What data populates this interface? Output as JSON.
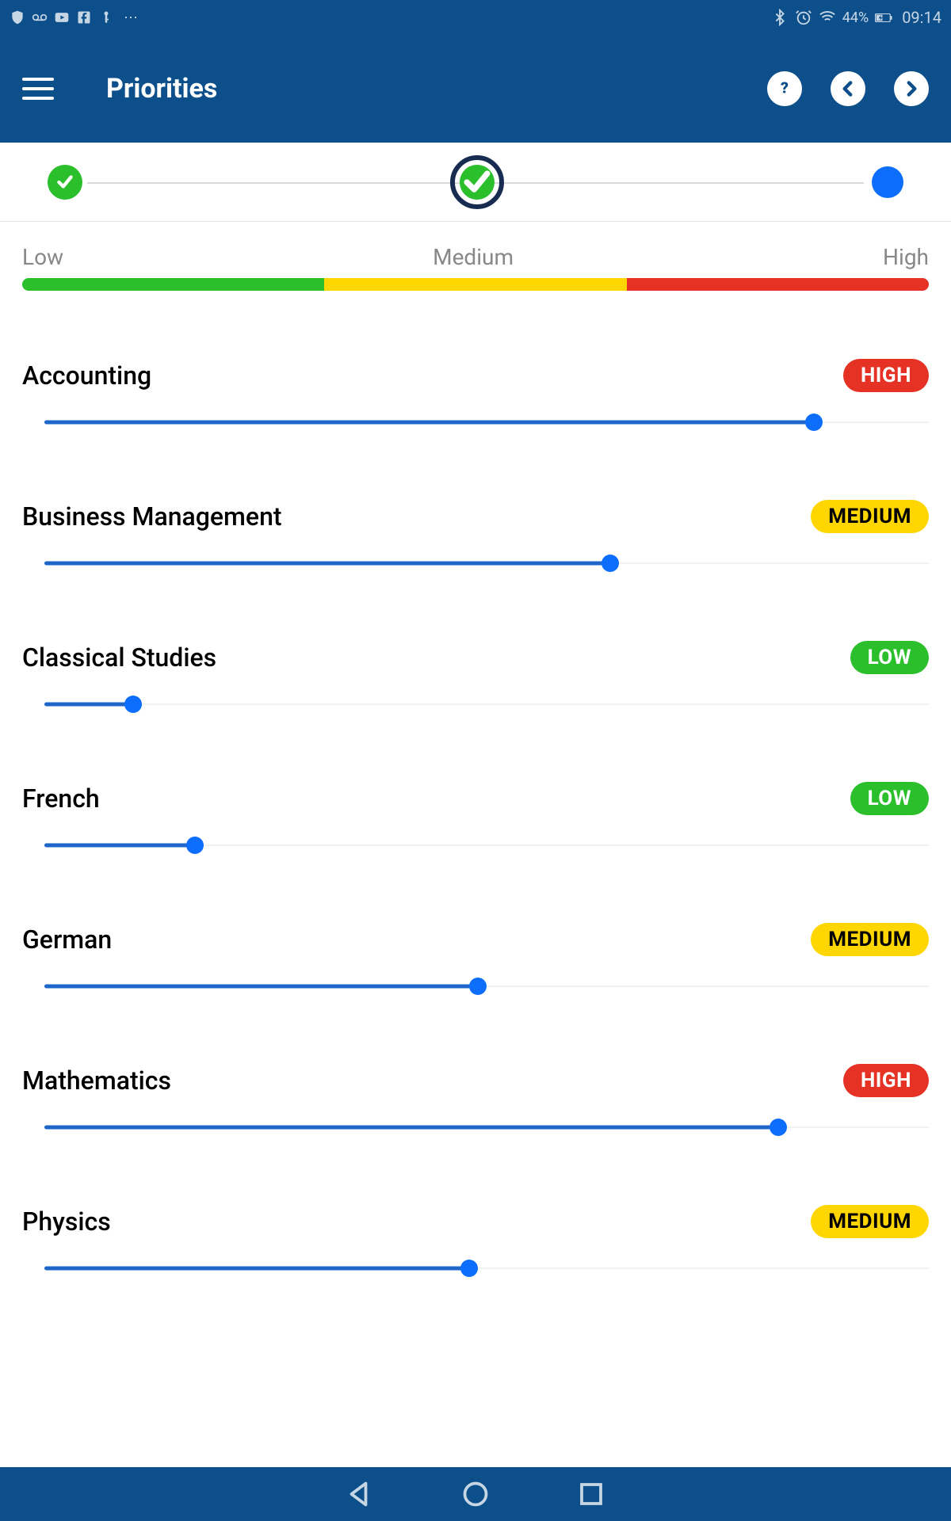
{
  "status": {
    "battery_percent": "44%",
    "time": "09:14"
  },
  "header": {
    "title": "Priorities"
  },
  "legend": {
    "low": "Low",
    "medium": "Medium",
    "high": "High",
    "colors": {
      "low": "#2bbf2b",
      "medium": "#ffd600",
      "high": "#e53224"
    }
  },
  "badge_labels": {
    "HIGH": "HIGH",
    "MEDIUM": "MEDIUM",
    "LOW": "LOW"
  },
  "slider": {
    "track_color": "#f2f2f2",
    "fill_color": "#1e66c7",
    "thumb_color": "#0d6efd"
  },
  "theme": {
    "primary": "#0d4f8b",
    "white": "#ffffff"
  },
  "subjects": [
    {
      "name": "Accounting",
      "level": "HIGH",
      "value": 87
    },
    {
      "name": "Business Management",
      "level": "MEDIUM",
      "value": 64
    },
    {
      "name": "Classical Studies",
      "level": "LOW",
      "value": 10
    },
    {
      "name": "French",
      "level": "LOW",
      "value": 17
    },
    {
      "name": "German",
      "level": "MEDIUM",
      "value": 49
    },
    {
      "name": "Mathematics",
      "level": "HIGH",
      "value": 83
    },
    {
      "name": "Physics",
      "level": "MEDIUM",
      "value": 48
    }
  ]
}
